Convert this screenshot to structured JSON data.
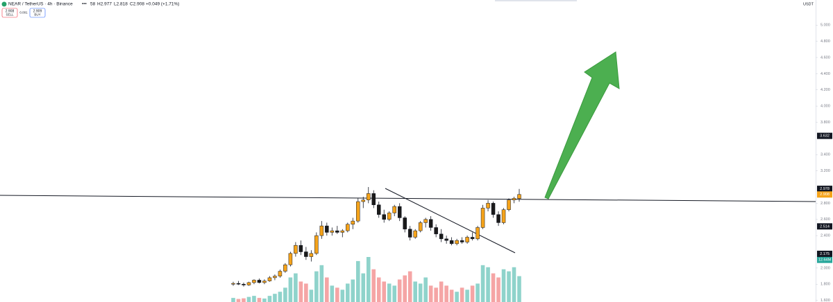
{
  "header": {
    "symbol": "NEAR / TetherUS · 4h · Binance",
    "open": "58",
    "high": "H2.977",
    "low": "L2.818",
    "close": "C2.908",
    "change": "+0.049 (+1.71%)",
    "sell_price": "2.908",
    "sell": "SELL",
    "spread": "0.001",
    "buy_price": "2.909",
    "buy": "BUY",
    "currency": "USDT"
  },
  "chart_data": {
    "type": "candlestick",
    "ylim": [
      1.58,
      5.31
    ],
    "yticks": [
      {
        "value": 5,
        "label": "5.000"
      },
      {
        "value": 4.8,
        "label": "4.800"
      },
      {
        "value": 4.6,
        "label": "4.600"
      },
      {
        "value": 4.4,
        "label": "4.400"
      },
      {
        "value": 4.2,
        "label": "4.200"
      },
      {
        "value": 4,
        "label": "4.000"
      },
      {
        "value": 3.8,
        "label": "3.800"
      },
      {
        "value": 3.4,
        "label": "3.400"
      },
      {
        "value": 3.2,
        "label": "3.200"
      },
      {
        "value": 2.8,
        "label": "2.800"
      },
      {
        "value": 2.6,
        "label": "2.600"
      },
      {
        "value": 2.4,
        "label": "2.400"
      },
      {
        "value": 2,
        "label": "2.000"
      },
      {
        "value": 1.8,
        "label": "1.800"
      },
      {
        "value": 1.6,
        "label": "1.600"
      }
    ],
    "up_color": "#f5a31a",
    "down_color": "#1a1a1a",
    "volume_up_color": "#8fd3cb",
    "volume_down_color": "#f5a5a5",
    "open": [
      1.8,
      1.81,
      1.8,
      1.79,
      1.82,
      1.85,
      1.82,
      1.84,
      1.88,
      1.9,
      1.96,
      2.04,
      2.18,
      2.28,
      2.2,
      2.14,
      2.18,
      2.4,
      2.52,
      2.44,
      2.46,
      2.44,
      2.46,
      2.54,
      2.58,
      2.82,
      2.84,
      2.92,
      2.78,
      2.66,
      2.6,
      2.68,
      2.76,
      2.62,
      2.48,
      2.38,
      2.46,
      2.56,
      2.6,
      2.5,
      2.42,
      2.36,
      2.34,
      2.3,
      2.34,
      2.32,
      2.38,
      2.36,
      2.5,
      2.74,
      2.8,
      2.66,
      2.56,
      2.72,
      2.84,
      2.858
    ],
    "high": [
      1.83,
      1.84,
      1.82,
      1.83,
      1.86,
      1.87,
      1.86,
      1.9,
      1.92,
      1.98,
      2.06,
      2.2,
      2.32,
      2.34,
      2.26,
      2.22,
      2.44,
      2.58,
      2.56,
      2.5,
      2.52,
      2.48,
      2.56,
      2.62,
      2.86,
      2.88,
      3.0,
      2.96,
      2.82,
      2.72,
      2.7,
      2.78,
      2.8,
      2.64,
      2.52,
      2.48,
      2.58,
      2.62,
      2.64,
      2.54,
      2.48,
      2.4,
      2.38,
      2.36,
      2.38,
      2.4,
      2.44,
      2.52,
      2.78,
      2.84,
      2.82,
      2.7,
      2.74,
      2.86,
      2.88,
      2.977
    ],
    "low": [
      1.78,
      1.79,
      1.77,
      1.78,
      1.8,
      1.81,
      1.8,
      1.83,
      1.85,
      1.88,
      1.94,
      2.02,
      2.14,
      2.16,
      2.1,
      2.08,
      2.16,
      2.36,
      2.4,
      2.4,
      2.42,
      2.38,
      2.44,
      2.48,
      2.56,
      2.74,
      2.8,
      2.74,
      2.62,
      2.56,
      2.58,
      2.64,
      2.58,
      2.44,
      2.34,
      2.36,
      2.44,
      2.5,
      2.46,
      2.38,
      2.32,
      2.3,
      2.28,
      2.28,
      2.3,
      2.3,
      2.34,
      2.34,
      2.48,
      2.7,
      2.62,
      2.52,
      2.54,
      2.7,
      2.8,
      2.818
    ],
    "close": [
      1.81,
      1.8,
      1.79,
      1.82,
      1.85,
      1.82,
      1.84,
      1.88,
      1.9,
      1.96,
      2.04,
      2.18,
      2.28,
      2.2,
      2.14,
      2.18,
      2.4,
      2.52,
      2.44,
      2.46,
      2.44,
      2.46,
      2.54,
      2.58,
      2.82,
      2.84,
      2.92,
      2.78,
      2.66,
      2.6,
      2.68,
      2.76,
      2.62,
      2.48,
      2.38,
      2.46,
      2.56,
      2.6,
      2.5,
      2.42,
      2.36,
      2.34,
      2.3,
      2.34,
      2.32,
      2.38,
      2.36,
      2.5,
      2.74,
      2.8,
      2.66,
      2.56,
      2.72,
      2.84,
      2.86,
      2.908
    ],
    "volume": [
      2,
      1.5,
      1.8,
      2.5,
      3,
      2,
      1.7,
      3,
      4,
      5,
      7,
      12,
      14,
      10,
      9,
      6,
      15,
      18,
      12,
      8,
      7,
      6,
      9,
      11,
      20,
      14,
      22,
      16,
      12,
      10,
      9,
      8,
      11,
      13,
      15,
      10,
      9,
      12,
      8,
      7,
      10,
      8,
      6,
      5,
      7,
      6,
      8,
      9,
      18,
      17,
      14,
      12,
      16,
      15,
      17,
      12.64
    ],
    "volume_last_label": "12.64M",
    "price_labels": [
      3.632,
      2.978,
      2.908,
      2.514,
      2.175
    ],
    "price_label_colors": [
      "#131722",
      "#131722",
      "#f5a31a",
      "#131722",
      "#131722"
    ]
  }
}
